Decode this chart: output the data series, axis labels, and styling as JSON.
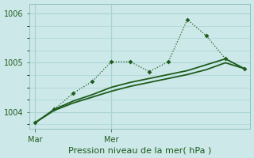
{
  "xlabel": "Pression niveau de la mer( hPa )",
  "bg_color": "#cce8e8",
  "grid_color": "#aad4d4",
  "line_color": "#1e5c1e",
  "ylim": [
    1003.65,
    1006.2
  ],
  "yticks": [
    1004,
    1005,
    1006
  ],
  "xtick_positions": [
    0,
    4
  ],
  "xtick_labels": [
    "Mar",
    "Mer"
  ],
  "xlim": [
    -0.3,
    11.3
  ],
  "smooth1_x": [
    0,
    1,
    2,
    3,
    4,
    5,
    6,
    7,
    8,
    9,
    10,
    11
  ],
  "smooth1_y": [
    1003.78,
    1004.03,
    1004.18,
    1004.3,
    1004.42,
    1004.52,
    1004.6,
    1004.68,
    1004.76,
    1004.86,
    1005.0,
    1004.88
  ],
  "smooth2_x": [
    0,
    1,
    2,
    3,
    4,
    5,
    6,
    7,
    8,
    9,
    10,
    11
  ],
  "smooth2_y": [
    1003.78,
    1004.05,
    1004.22,
    1004.35,
    1004.5,
    1004.6,
    1004.68,
    1004.76,
    1004.84,
    1004.96,
    1005.08,
    1004.88
  ],
  "spiky_x": [
    0,
    1,
    2,
    3,
    4,
    5,
    6,
    7,
    8,
    9,
    10,
    11
  ],
  "spiky_y": [
    1003.78,
    1004.05,
    1004.38,
    1004.62,
    1005.02,
    1005.02,
    1004.82,
    1005.02,
    1005.88,
    1005.55,
    1005.08,
    1004.88
  ],
  "xlabel_fontsize": 8,
  "ytick_fontsize": 7,
  "xtick_fontsize": 7,
  "markersize": 3
}
